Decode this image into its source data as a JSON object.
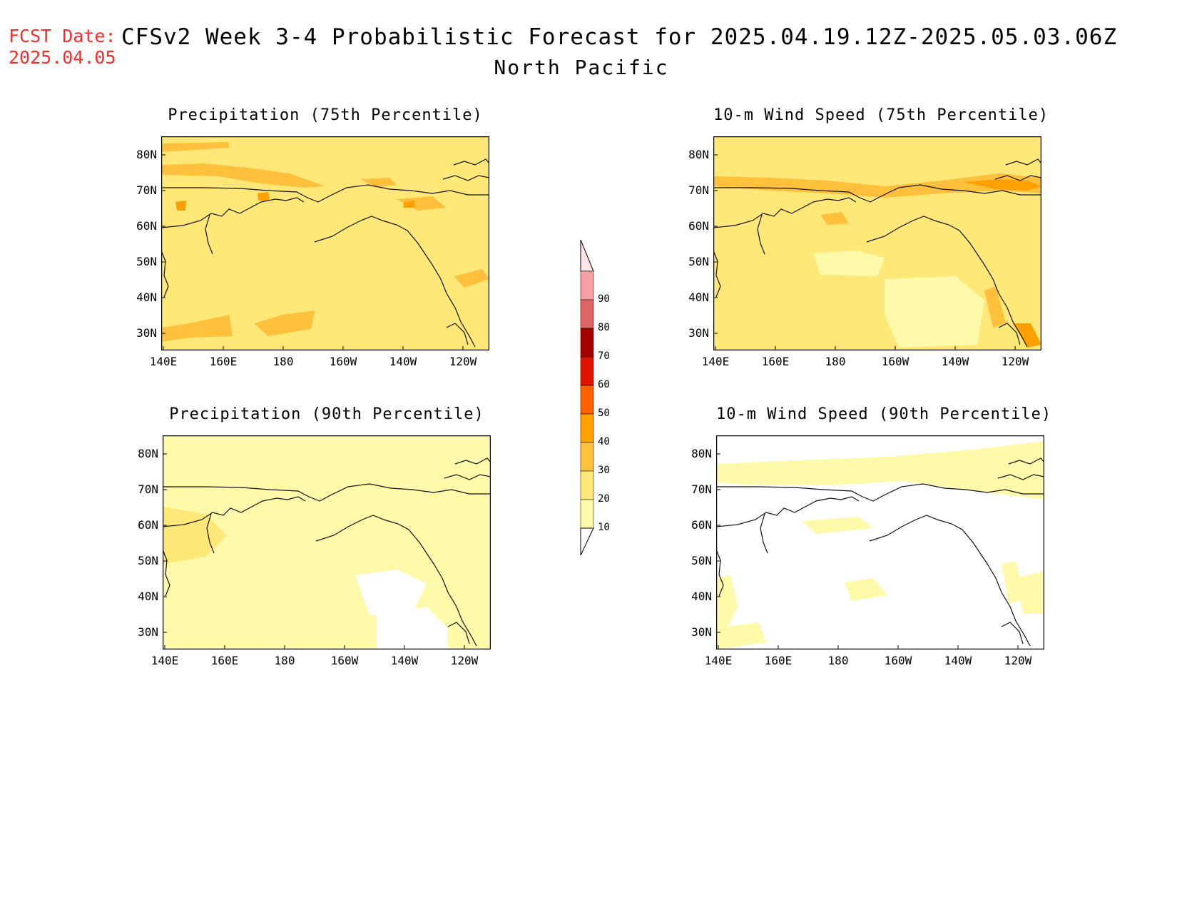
{
  "header": {
    "fcst_label": "FCST Date:",
    "fcst_date": "2025.04.05",
    "title": "CFSv2 Week 3-4 Probabilistic Forecast for 2025.04.19.12Z-2025.05.03.06Z",
    "subtitle": "North Pacific"
  },
  "colors": {
    "c10": "#fffaaa",
    "c20": "#ffe878",
    "c30": "#ffc03c",
    "c40": "#ffa000",
    "c50": "#ff6000",
    "c60": "#e11400",
    "c70": "#a50000",
    "c80": "#e16464",
    "c90": "#f5a0a0",
    "c100": "#ffe6e6"
  },
  "axes": {
    "lat_labels": [
      "80N",
      "70N",
      "60N",
      "50N",
      "40N",
      "30N"
    ],
    "lon_labels": [
      "140E",
      "160E",
      "180",
      "160W",
      "140W",
      "120W"
    ]
  },
  "panels": [
    {
      "title": "Precipitation (75th Percentile)",
      "base_level": 20
    },
    {
      "title": "10-m Wind Speed (75th Percentile)",
      "base_level": 20
    },
    {
      "title": "Precipitation (90th Percentile)",
      "base_level": 10
    },
    {
      "title": "10-m Wind Speed (90th Percentile)",
      "base_level": 0
    }
  ],
  "colorbar": {
    "levels": [
      "10",
      "20",
      "30",
      "40",
      "50",
      "60",
      "70",
      "80",
      "90"
    ]
  }
}
